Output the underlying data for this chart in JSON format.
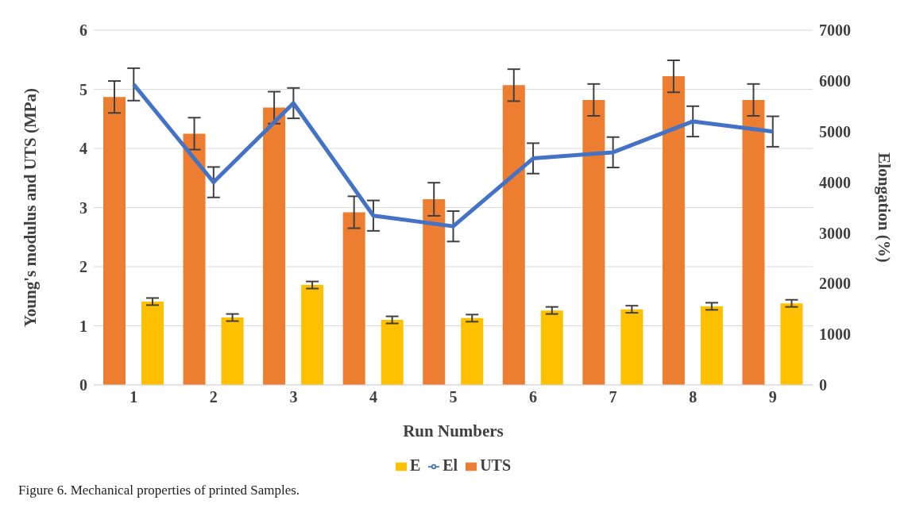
{
  "chart_data": {
    "type": "bar",
    "xlabel": "Run Numbers",
    "ylabel": "Young's modulus and UTS (MPa)",
    "y2label": "Elongation (%)",
    "categories": [
      "1",
      "2",
      "3",
      "4",
      "5",
      "6",
      "7",
      "8",
      "9"
    ],
    "series": [
      {
        "name": "UTS",
        "color": "#ed7d31",
        "values": [
          4.87,
          4.25,
          4.69,
          2.92,
          3.14,
          5.07,
          4.82,
          5.22,
          4.82
        ],
        "errors": [
          0.27,
          0.27,
          0.27,
          0.27,
          0.28,
          0.27,
          0.27,
          0.27,
          0.27
        ]
      },
      {
        "name": "E",
        "color": "#ffc000",
        "values": [
          1.41,
          1.14,
          1.69,
          1.1,
          1.13,
          1.26,
          1.28,
          1.33,
          1.38
        ],
        "errors": [
          0.06,
          0.06,
          0.06,
          0.06,
          0.06,
          0.06,
          0.06,
          0.06,
          0.06
        ]
      },
      {
        "name": "El",
        "type": "line",
        "axis": "y2",
        "color": "#4472c4",
        "values": [
          5930,
          4000,
          5560,
          3340,
          3130,
          4470,
          4590,
          5200,
          5000
        ],
        "errors": [
          320,
          300,
          300,
          300,
          300,
          300,
          300,
          300,
          300
        ]
      }
    ],
    "ylim": [
      0,
      6
    ],
    "yticks": [
      0,
      1,
      2,
      3,
      4,
      5,
      6
    ],
    "y2lim": [
      0,
      7000
    ],
    "y2ticks": [
      0,
      1000,
      2000,
      3000,
      4000,
      5000,
      6000,
      7000
    ],
    "grid": "y",
    "legend": "bottom",
    "marker": "none",
    "line_style": "solid",
    "annotations": [
      "Figure 6. Mechanical properties of printed Samples."
    ]
  }
}
